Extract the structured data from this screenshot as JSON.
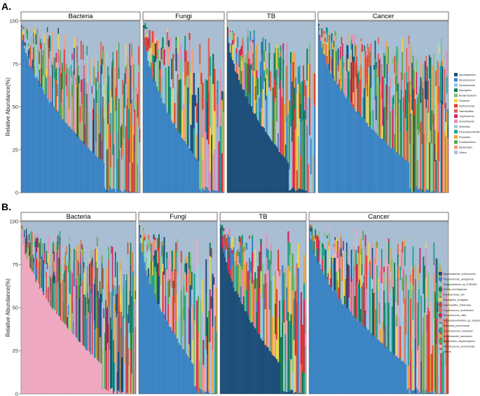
{
  "figure": {
    "panel_labels": [
      "A.",
      "B."
    ]
  },
  "chart_data": [
    {
      "type": "bar",
      "stacked": true,
      "panel": "A.",
      "ylabel": "Relative Abundance(%)",
      "ylim": [
        0,
        100
      ],
      "yticks": [
        0,
        25,
        50,
        75,
        100
      ],
      "grid": false,
      "legend_position": "right",
      "facets": [
        {
          "name": "Bacteria",
          "n_samples": 120,
          "dominant": "Streptococcus"
        },
        {
          "name": "Fungi",
          "n_samples": 55,
          "dominant": "Streptococcus"
        },
        {
          "name": "TB",
          "n_samples": 70,
          "dominant": "Mycobacterium"
        },
        {
          "name": "Cancer",
          "n_samples": 120,
          "dominant": "Streptococcus"
        }
      ],
      "legend": [
        {
          "name": "Mycobacterium",
          "color": "#1c4e79"
        },
        {
          "name": "Streptococcus",
          "color": "#3b84c4"
        },
        {
          "name": "Pseudomonas",
          "color": "#8fc3e6"
        },
        {
          "name": "Aspergillus",
          "color": "#117a4f"
        },
        {
          "name": "Bradyrhizobium",
          "color": "#7ec27a"
        },
        {
          "name": "Fusarium",
          "color": "#f2d34f"
        },
        {
          "name": "Xanthomonas",
          "color": "#e0402f"
        },
        {
          "name": "Haemophilus",
          "color": "#e45f4f"
        },
        {
          "name": "Cryptococcus",
          "color": "#d1235b"
        },
        {
          "name": "Acinetobacter",
          "color": "#e08fb5"
        },
        {
          "name": "Klebsiella",
          "color": "#9fd0d8"
        },
        {
          "name": "Pseudodesulfovibrio",
          "color": "#1b9f8c"
        },
        {
          "name": "Prevotella",
          "color": "#e8a33b"
        },
        {
          "name": "Fusobacterium",
          "color": "#58a64a"
        },
        {
          "name": "Bacteroides",
          "color": "#f0a080"
        },
        {
          "name": "Others",
          "color": "#a9bed2"
        }
      ]
    },
    {
      "type": "bar",
      "stacked": true,
      "panel": "B.",
      "ylabel": "Relative Abundance(%)",
      "ylim": [
        0,
        100
      ],
      "yticks": [
        0,
        25,
        50,
        75,
        100
      ],
      "grid": false,
      "legend_position": "right",
      "facets": [
        {
          "name": "Bacteria",
          "n_samples": 120,
          "dominant": "Streptococcus_pneumoniae"
        },
        {
          "name": "Fungi",
          "n_samples": 60,
          "dominant": "Pseudomonas_aeruginosa"
        },
        {
          "name": "TB",
          "n_samples": 60,
          "dominant": "Mycobacterium_tuberculosis"
        },
        {
          "name": "Cancer",
          "n_samples": 120,
          "dominant": "Pseudomonas_aeruginosa"
        }
      ],
      "legend": [
        {
          "name": "Mycobacterium_tuberculosis",
          "color": "#1c4e79"
        },
        {
          "name": "Pseudomonas_aeruginosa",
          "color": "#3b84c4"
        },
        {
          "name": "Bradyrhizobium_sp_P1B0964",
          "color": "#8fc3e6"
        },
        {
          "name": "Rothia_mucilaginosa",
          "color": "#117a4f"
        },
        {
          "name": "Xanthomonas_citri",
          "color": "#7ec27a"
        },
        {
          "name": "Aspergillus_fumigatus",
          "color": "#f2d34f"
        },
        {
          "name": "Haemophilus_influenzae",
          "color": "#e0402f"
        },
        {
          "name": "Cryptococcus_neoformans",
          "color": "#e06a4a"
        },
        {
          "name": "Streptococcus_mitis",
          "color": "#d1235b"
        },
        {
          "name": "Pseudodesulfovibrio_sp_S3xpD8",
          "color": "#e08fb5"
        },
        {
          "name": "Klebsiella_pneumoniae",
          "color": "#9fd0d8"
        },
        {
          "name": "Fusobacterium_nucleatum",
          "color": "#1b9f8c"
        },
        {
          "name": "Acinetobacter_baumannii",
          "color": "#e8a33b"
        },
        {
          "name": "Bacteroides_heparinolyticus",
          "color": "#58a64a"
        },
        {
          "name": "Streptococcus_pneumoniae",
          "color": "#f0a8c0"
        },
        {
          "name": "Others",
          "color": "#a9bed2"
        }
      ]
    }
  ]
}
